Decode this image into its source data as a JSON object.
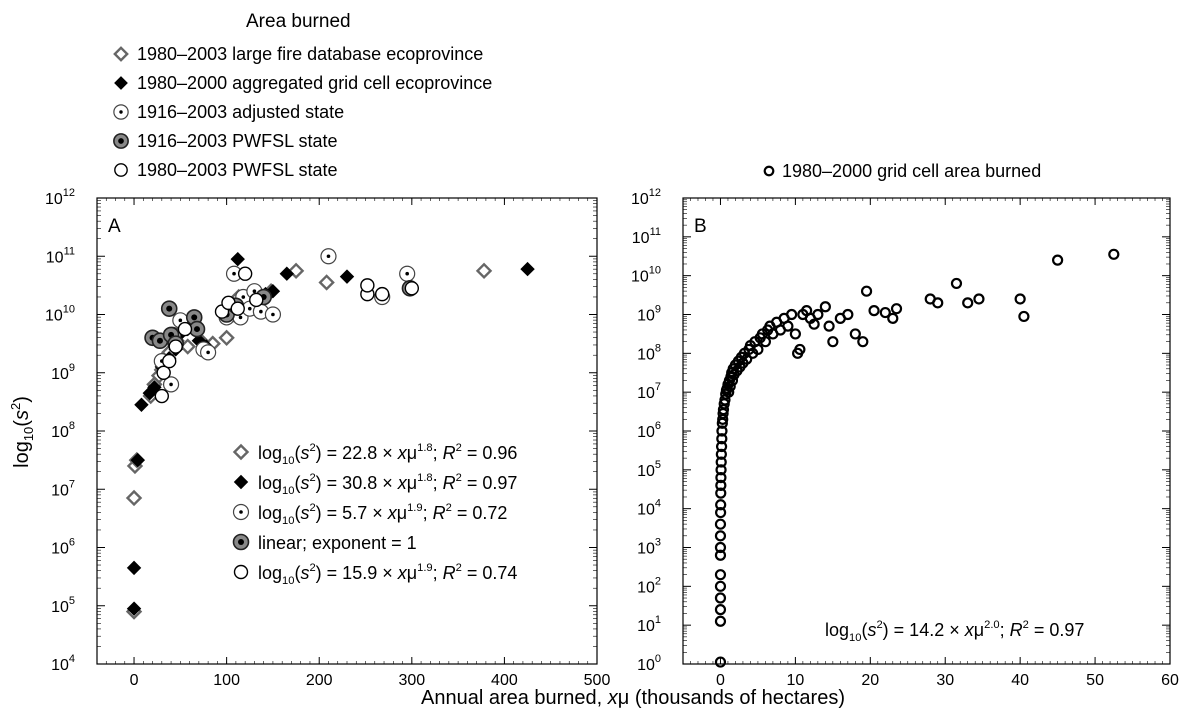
{
  "figure": {
    "top_legend_title": "Area burned",
    "xlabel_main": "Annual area burned, ",
    "xlabel_var": "x",
    "xlabel_mu": "μ",
    "xlabel_tail": " (thousands of hectares)",
    "ylabel_main": "log",
    "ylabel_sub": "10",
    "ylabel_arg": "(s",
    "ylabel_sup": "2",
    "ylabel_close": ")"
  },
  "chart_data": [
    {
      "type": "scatter",
      "panel_label": "A",
      "xlim": [
        -40,
        500
      ],
      "ylim_log10": [
        4,
        12
      ],
      "x_ticks": [
        0,
        100,
        200,
        300,
        400,
        500
      ],
      "y_ticks": [
        "10",
        "10",
        "10",
        "10",
        "10",
        "10",
        "10",
        "10",
        "10"
      ],
      "y_tick_exps": [
        "4",
        "5",
        "6",
        "7",
        "8",
        "9",
        "10",
        "11",
        "12"
      ],
      "y_log_scale": true,
      "legend_top": [
        {
          "label": "1980–2003 large fire database ecoprovince",
          "marker": "diamond-open"
        },
        {
          "label": "1980–2000 aggregated grid cell ecoprovince",
          "marker": "diamond-filled"
        },
        {
          "label": "1916–2003 adjusted state",
          "marker": "circle-dot"
        },
        {
          "label": "1916–2003 PWFSL state",
          "marker": "circle-bullseye"
        },
        {
          "label": "1980–2003 PWFSL state",
          "marker": "circle-open"
        }
      ],
      "fits": [
        {
          "marker": "diamond-open",
          "prefix": "log",
          "sub": "10",
          "arg": "(s",
          "sup": "2",
          "mid": ") = 22.8 × x",
          "mu": "μ",
          "exp": "1.8",
          "tail": "; ",
          "r": "R",
          "r_sup": "2",
          "r_val": " = 0.96"
        },
        {
          "marker": "diamond-filled",
          "prefix": "log",
          "sub": "10",
          "arg": "(s",
          "sup": "2",
          "mid": ") = 30.8 × x",
          "mu": "μ",
          "exp": "1.8",
          "tail": "; ",
          "r": "R",
          "r_sup": "2",
          "r_val": " = 0.97"
        },
        {
          "marker": "circle-dot",
          "prefix": "log",
          "sub": "10",
          "arg": "(s",
          "sup": "2",
          "mid": ") = 5.7 × x",
          "mu": "μ",
          "exp": "1.9",
          "tail": "; ",
          "r": "R",
          "r_sup": "2",
          "r_val": " = 0.72"
        },
        {
          "marker": "circle-bullseye",
          "plain": "linear; exponent = 1"
        },
        {
          "marker": "circle-open",
          "prefix": "log",
          "sub": "10",
          "arg": "(s",
          "sup": "2",
          "mid": ") = 15.9 × x",
          "mu": "μ",
          "exp": "1.9",
          "tail": "; ",
          "r": "R",
          "r_sup": "2",
          "r_val": " = 0.74"
        }
      ],
      "series": [
        {
          "name": "1980–2003 large fire database ecoprovince",
          "marker": "diamond-open",
          "points": [
            [
              0,
              4.9
            ],
            [
              0,
              6.85
            ],
            [
              1,
              7.4
            ],
            [
              3,
              7.5
            ],
            [
              18,
              8.6
            ],
            [
              22,
              8.8
            ],
            [
              27,
              8.95
            ],
            [
              30,
              9.05
            ],
            [
              38,
              9.35
            ],
            [
              46,
              9.55
            ],
            [
              50,
              9.7
            ],
            [
              58,
              9.45
            ],
            [
              63,
              9.9
            ],
            [
              72,
              9.55
            ],
            [
              85,
              9.5
            ],
            [
              100,
              9.6
            ],
            [
              108,
              10.0
            ],
            [
              113,
              10.3
            ],
            [
              125,
              10.15
            ],
            [
              138,
              10.3
            ],
            [
              148,
              10.4
            ],
            [
              175,
              10.75
            ],
            [
              208,
              10.55
            ],
            [
              378,
              10.75
            ]
          ]
        },
        {
          "name": "1980–2000 aggregated grid cell ecoprovince",
          "marker": "diamond-filled",
          "points": [
            [
              0,
              4.95
            ],
            [
              0,
              5.65
            ],
            [
              4,
              7.5
            ],
            [
              8,
              8.45
            ],
            [
              17,
              8.65
            ],
            [
              22,
              8.75
            ],
            [
              30,
              9.1
            ],
            [
              38,
              9.25
            ],
            [
              45,
              9.4
            ],
            [
              52,
              9.7
            ],
            [
              58,
              9.75
            ],
            [
              70,
              9.55
            ],
            [
              78,
              9.45
            ],
            [
              100,
              9.95
            ],
            [
              110,
              10.1
            ],
            [
              112,
              10.95
            ],
            [
              130,
              10.3
            ],
            [
              142,
              10.35
            ],
            [
              150,
              10.4
            ],
            [
              165,
              10.7
            ],
            [
              230,
              10.65
            ],
            [
              425,
              10.78
            ]
          ]
        },
        {
          "name": "1916–2003 adjusted state",
          "marker": "circle-dot",
          "points": [
            [
              30,
              9.2
            ],
            [
              40,
              8.8
            ],
            [
              42,
              9.65
            ],
            [
              50,
              9.9
            ],
            [
              75,
              9.4
            ],
            [
              80,
              9.35
            ],
            [
              100,
              9.95
            ],
            [
              105,
              10.15
            ],
            [
              108,
              10.7
            ],
            [
              115,
              9.95
            ],
            [
              118,
              10.3
            ],
            [
              125,
              10.1
            ],
            [
              130,
              10.4
            ],
            [
              137,
              10.05
            ],
            [
              150,
              10.0
            ],
            [
              210,
              11.0
            ],
            [
              268,
              10.3
            ],
            [
              295,
              10.7
            ]
          ]
        },
        {
          "name": "1916–2003 PWFSL state",
          "marker": "circle-bullseye",
          "points": [
            [
              20,
              9.6
            ],
            [
              28,
              9.55
            ],
            [
              38,
              10.1
            ],
            [
              40,
              9.65
            ],
            [
              45,
              9.5
            ],
            [
              65,
              9.95
            ],
            [
              68,
              9.75
            ],
            [
              100,
              10.0
            ],
            [
              110,
              10.15
            ],
            [
              140,
              10.3
            ],
            [
              298,
              10.45
            ]
          ]
        },
        {
          "name": "1980–2003 PWFSL state",
          "marker": "circle-open",
          "points": [
            [
              30,
              8.6
            ],
            [
              32,
              9.0
            ],
            [
              38,
              9.2
            ],
            [
              45,
              9.45
            ],
            [
              55,
              9.75
            ],
            [
              95,
              10.05
            ],
            [
              102,
              10.2
            ],
            [
              112,
              10.1
            ],
            [
              120,
              10.7
            ],
            [
              132,
              10.25
            ],
            [
              252,
              10.35
            ],
            [
              252,
              10.5
            ],
            [
              268,
              10.35
            ],
            [
              300,
              10.45
            ]
          ]
        }
      ]
    },
    {
      "type": "scatter",
      "panel_label": "B",
      "xlim": [
        -5,
        60
      ],
      "ylim_log10": [
        0,
        12
      ],
      "x_ticks": [
        0,
        10,
        20,
        30,
        40,
        50,
        60
      ],
      "y_ticks": [
        "10",
        "10",
        "10",
        "10",
        "10",
        "10",
        "10",
        "10",
        "10",
        "10",
        "10",
        "10",
        "10"
      ],
      "y_tick_exps": [
        "0",
        "1",
        "2",
        "3",
        "4",
        "5",
        "6",
        "7",
        "8",
        "9",
        "10",
        "11",
        "12"
      ],
      "y_log_scale": true,
      "legend_top": [
        {
          "label": "1980–2000 grid cell area burned",
          "marker": "circle-open"
        }
      ],
      "fit": {
        "prefix": "log",
        "sub": "10",
        "arg": "(s",
        "sup": "2",
        "mid": ") = 14.2 × x",
        "mu": "μ",
        "exp": "2.0",
        "tail": "; ",
        "r": "R",
        "r_sup": "2",
        "r_val": " = 0.97"
      },
      "series": [
        {
          "name": "1980–2000 grid cell area burned",
          "marker": "circle-open",
          "points": [
            [
              0,
              0.05
            ],
            [
              0,
              1.1
            ],
            [
              0,
              1.4
            ],
            [
              0,
              1.7
            ],
            [
              0,
              2.0
            ],
            [
              0,
              2.3
            ],
            [
              0,
              2.8
            ],
            [
              0,
              3.0
            ],
            [
              0,
              3.3
            ],
            [
              0,
              3.6
            ],
            [
              0.02,
              3.9
            ],
            [
              0.03,
              4.1
            ],
            [
              0.04,
              4.4
            ],
            [
              0.05,
              4.6
            ],
            [
              0.06,
              4.8
            ],
            [
              0.08,
              5.0
            ],
            [
              0.1,
              5.2
            ],
            [
              0.12,
              5.4
            ],
            [
              0.15,
              5.6
            ],
            [
              0.18,
              5.8
            ],
            [
              0.2,
              6.0
            ],
            [
              0.25,
              6.2
            ],
            [
              0.3,
              6.3
            ],
            [
              0.35,
              6.45
            ],
            [
              0.4,
              6.55
            ],
            [
              0.5,
              6.7
            ],
            [
              0.6,
              6.8
            ],
            [
              0.7,
              6.95
            ],
            [
              0.8,
              7.05
            ],
            [
              0.9,
              7.1
            ],
            [
              1.0,
              7.2
            ],
            [
              1.1,
              7.0
            ],
            [
              1.2,
              7.3
            ],
            [
              1.3,
              7.15
            ],
            [
              1.4,
              7.4
            ],
            [
              1.5,
              7.5
            ],
            [
              1.6,
              7.3
            ],
            [
              1.7,
              7.6
            ],
            [
              1.8,
              7.45
            ],
            [
              2.0,
              7.7
            ],
            [
              2.2,
              7.55
            ],
            [
              2.4,
              7.8
            ],
            [
              2.6,
              7.65
            ],
            [
              2.8,
              7.9
            ],
            [
              3.0,
              7.75
            ],
            [
              3.2,
              8.0
            ],
            [
              3.5,
              7.85
            ],
            [
              3.8,
              8.1
            ],
            [
              4.0,
              8.2
            ],
            [
              4.3,
              8.0
            ],
            [
              4.6,
              8.3
            ],
            [
              5.0,
              8.1
            ],
            [
              5.3,
              8.4
            ],
            [
              5.6,
              8.5
            ],
            [
              6.0,
              8.3
            ],
            [
              6.3,
              8.6
            ],
            [
              6.6,
              8.7
            ],
            [
              7.0,
              8.5
            ],
            [
              7.5,
              8.8
            ],
            [
              8.0,
              8.6
            ],
            [
              8.5,
              8.9
            ],
            [
              9.0,
              8.7
            ],
            [
              9.5,
              9.0
            ],
            [
              10.0,
              8.5
            ],
            [
              10.3,
              8.0
            ],
            [
              10.6,
              8.1
            ],
            [
              11.0,
              9.0
            ],
            [
              11.5,
              9.1
            ],
            [
              12.0,
              8.9
            ],
            [
              12.5,
              8.75
            ],
            [
              13.0,
              9.0
            ],
            [
              14.0,
              9.2
            ],
            [
              14.5,
              8.7
            ],
            [
              15.0,
              8.3
            ],
            [
              16.0,
              8.9
            ],
            [
              17.0,
              9.0
            ],
            [
              18.0,
              8.5
            ],
            [
              19.0,
              8.3
            ],
            [
              19.5,
              9.6
            ],
            [
              20.5,
              9.1
            ],
            [
              22.0,
              9.05
            ],
            [
              23.0,
              8.9
            ],
            [
              23.5,
              9.15
            ],
            [
              28.0,
              9.4
            ],
            [
              29.0,
              9.3
            ],
            [
              31.5,
              9.8
            ],
            [
              33.0,
              9.3
            ],
            [
              34.5,
              9.4
            ],
            [
              40.0,
              9.4
            ],
            [
              40.5,
              8.95
            ],
            [
              45.0,
              10.4
            ],
            [
              52.5,
              10.55
            ]
          ]
        }
      ]
    }
  ]
}
